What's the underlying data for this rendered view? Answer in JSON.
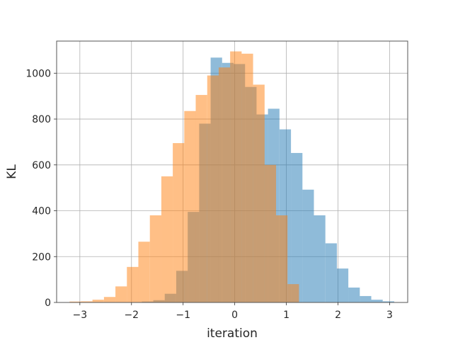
{
  "chart_data": {
    "type": "bar",
    "xlabel": "iteration",
    "ylabel": "KL",
    "xlim": [
      -3.45,
      3.35
    ],
    "ylim": [
      0,
      1140
    ],
    "xticks": [
      -3,
      -2,
      -1,
      0,
      1,
      2,
      3
    ],
    "xtick_labels": [
      "−3",
      "−2",
      "−1",
      "0",
      "1",
      "2",
      "3"
    ],
    "yticks": [
      0,
      200,
      400,
      600,
      800,
      1000
    ],
    "ytick_labels": [
      "0",
      "200",
      "400",
      "600",
      "800",
      "1000"
    ],
    "grid": true,
    "bin_width": 0.2222,
    "series": [
      {
        "color": "#1f77b4",
        "opacity": 0.5,
        "bin_starts": [
          -1.8,
          -1.578,
          -1.356,
          -1.133,
          -0.911,
          -0.689,
          -0.467,
          -0.244,
          -0.022,
          0.2,
          0.422,
          0.644,
          0.867,
          1.089,
          1.311,
          1.533,
          1.756,
          1.978,
          2.2,
          2.422,
          2.644,
          2.867
        ],
        "values": [
          4,
          10,
          38,
          138,
          395,
          780,
          1068,
          1045,
          1040,
          940,
          820,
          845,
          755,
          652,
          492,
          380,
          258,
          148,
          65,
          28,
          12,
          5
        ]
      },
      {
        "color": "#ff7f0e",
        "opacity": 0.5,
        "bin_starts": [
          -3.2,
          -2.978,
          -2.756,
          -2.533,
          -2.311,
          -2.089,
          -1.867,
          -1.644,
          -1.422,
          -1.2,
          -0.978,
          -0.756,
          -0.533,
          -0.311,
          -0.089,
          0.133,
          0.356,
          0.578,
          0.8,
          1.022
        ],
        "values": [
          4,
          5,
          12,
          24,
          70,
          155,
          265,
          380,
          550,
          695,
          835,
          905,
          990,
          1025,
          1095,
          1085,
          950,
          600,
          380,
          80
        ]
      }
    ]
  }
}
